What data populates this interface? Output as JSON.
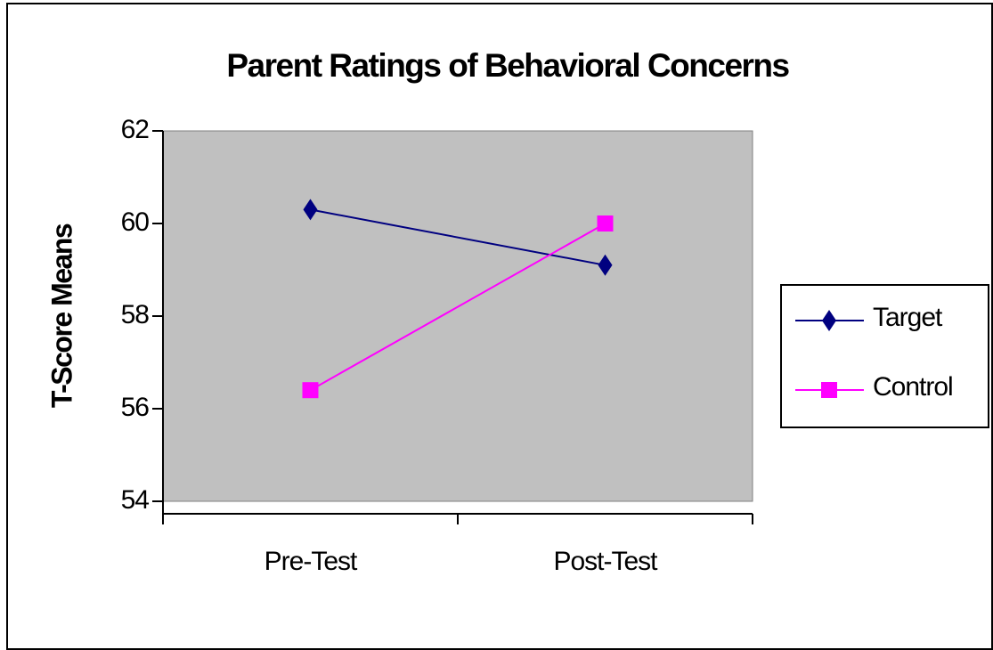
{
  "chart_data": {
    "type": "line",
    "title": "Parent Ratings of Behavioral Concerns",
    "ylabel": "T-Score Means",
    "categories": [
      "Pre-Test",
      "Post-Test"
    ],
    "series": [
      {
        "name": "Target",
        "color": "#000080",
        "marker": "diamond",
        "values": [
          60.3,
          59.1
        ]
      },
      {
        "name": "Control",
        "color": "#ff00ff",
        "marker": "square",
        "values": [
          56.4,
          60.0
        ]
      }
    ],
    "ylim": [
      54,
      62
    ],
    "yticks": [
      54,
      56,
      58,
      60,
      62
    ],
    "legend": "right"
  }
}
